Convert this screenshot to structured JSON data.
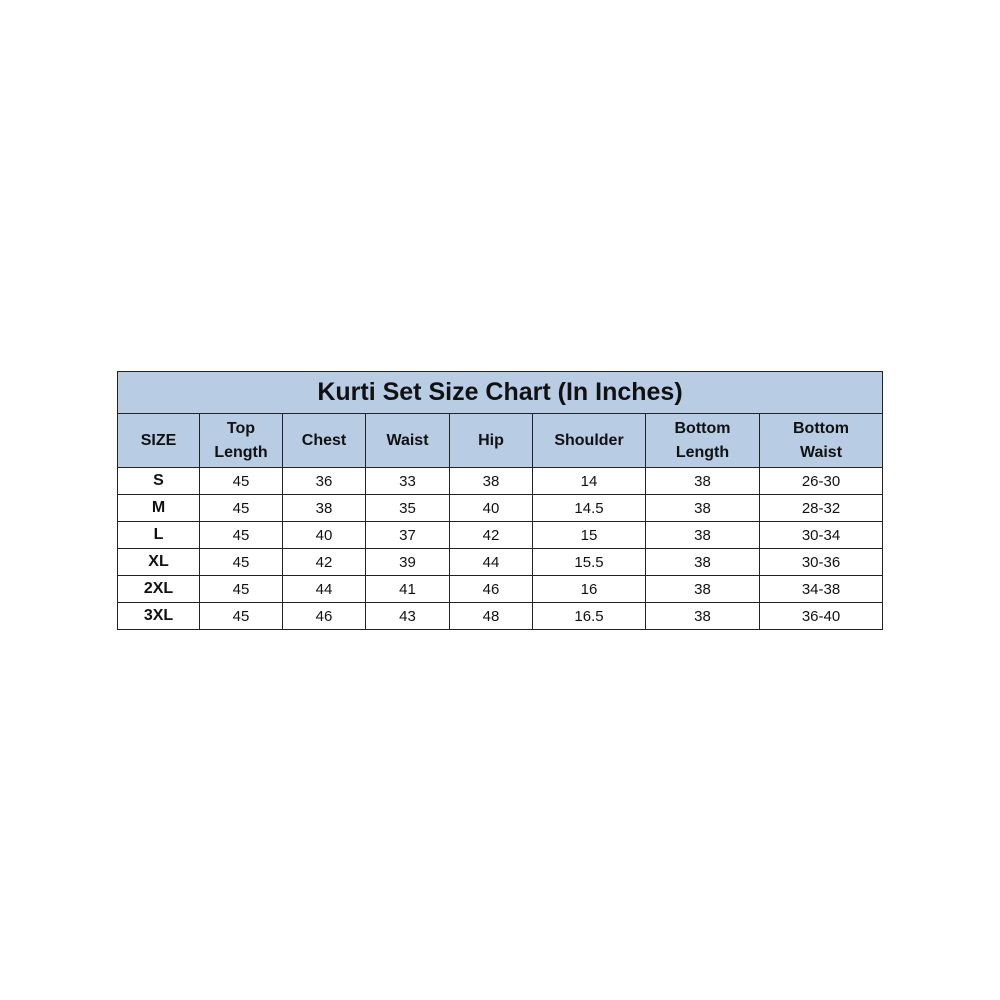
{
  "title": "Kurti Set Size Chart (In Inches)",
  "header_color": "#b8cce4",
  "columns": [
    {
      "line1": "SIZE",
      "line2": ""
    },
    {
      "line1": "Top",
      "line2": "Length"
    },
    {
      "line1": "Chest",
      "line2": ""
    },
    {
      "line1": "Waist",
      "line2": ""
    },
    {
      "line1": "Hip",
      "line2": ""
    },
    {
      "line1": "Shoulder",
      "line2": ""
    },
    {
      "line1": "Bottom",
      "line2": "Length"
    },
    {
      "line1": "Bottom",
      "line2": "Waist"
    }
  ],
  "rows": [
    [
      "S",
      "45",
      "36",
      "33",
      "38",
      "14",
      "38",
      "26-30"
    ],
    [
      "M",
      "45",
      "38",
      "35",
      "40",
      "14.5",
      "38",
      "28-32"
    ],
    [
      "L",
      "45",
      "40",
      "37",
      "42",
      "15",
      "38",
      "30-34"
    ],
    [
      "XL",
      "45",
      "42",
      "39",
      "44",
      "15.5",
      "38",
      "30-36"
    ],
    [
      "2XL",
      "45",
      "44",
      "41",
      "46",
      "16",
      "38",
      "34-38"
    ],
    [
      "3XL",
      "45",
      "46",
      "43",
      "48",
      "16.5",
      "38",
      "36-40"
    ]
  ]
}
